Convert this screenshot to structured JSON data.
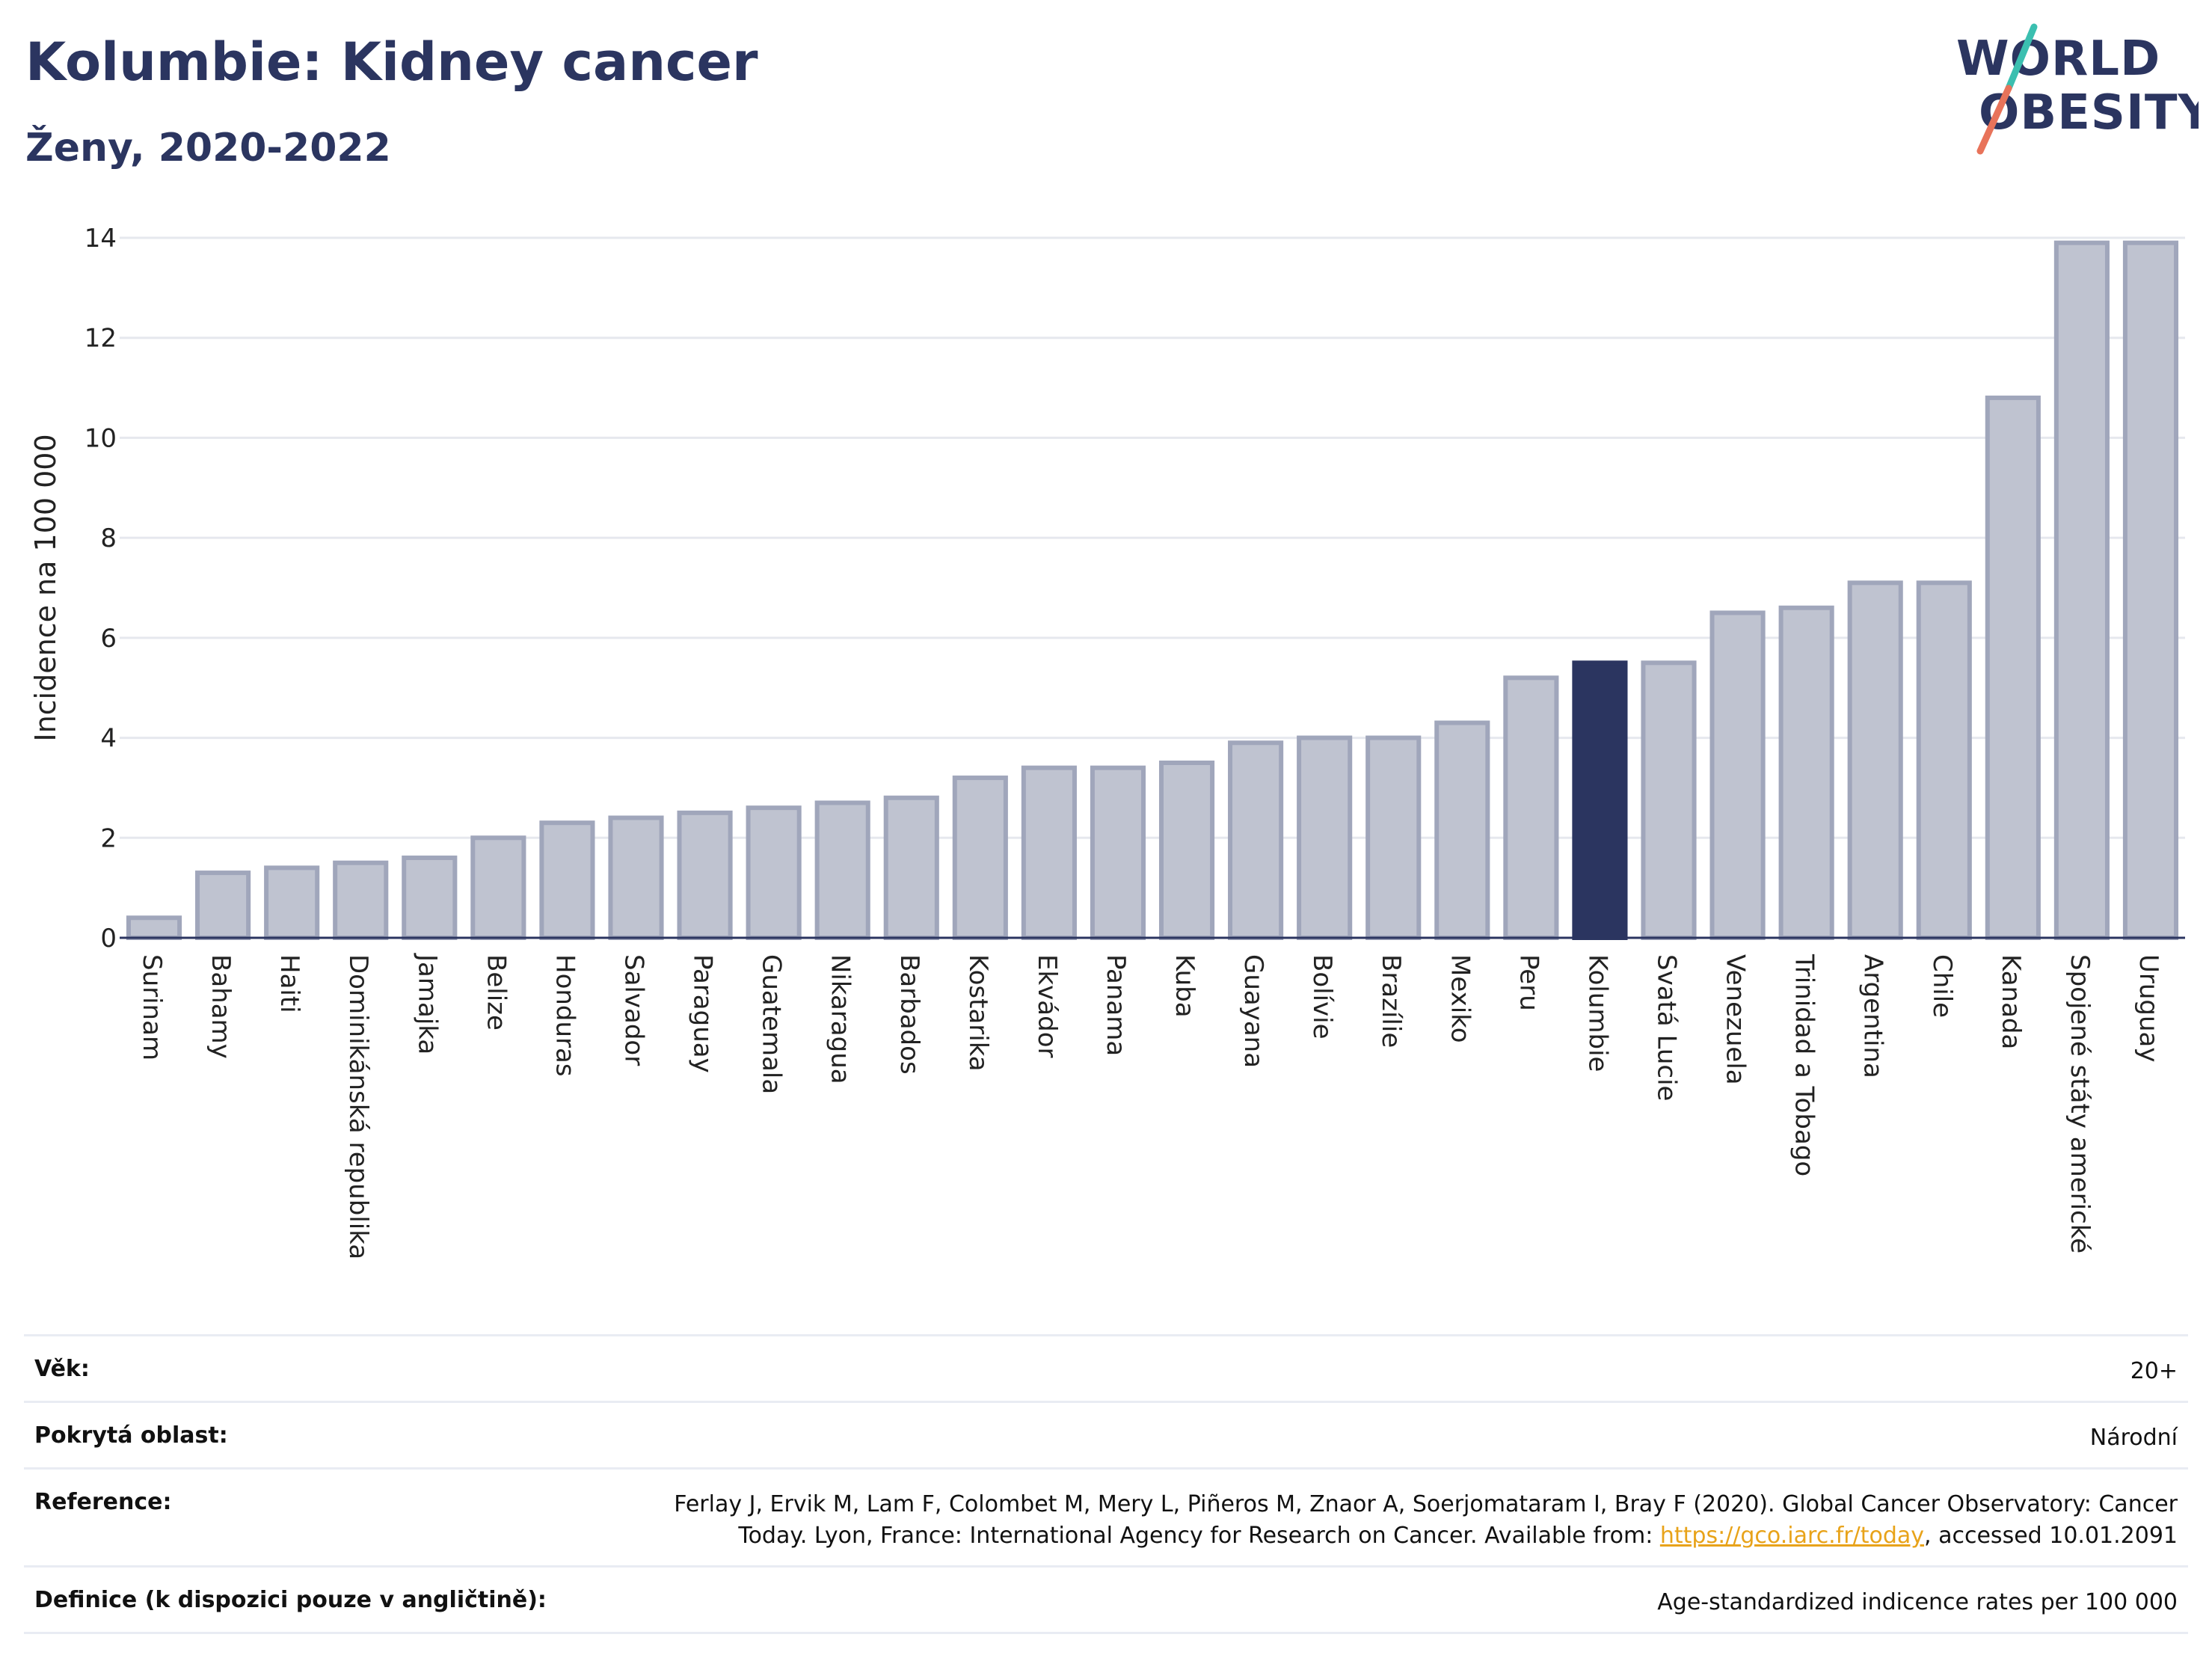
{
  "header": {
    "title": "Kolumbie: Kidney cancer",
    "subtitle": "Ženy, 2020-2022"
  },
  "logo": {
    "line1": "WORLD",
    "line2": "OBESITY",
    "colors": {
      "text": "#2b3560",
      "slash_top": "#3bbfb0",
      "slash_bottom": "#e8735a"
    }
  },
  "colors": {
    "bar_default": "#bfc3d0",
    "bar_default_border": "#a0a6bb",
    "bar_highlight": "#2b3560",
    "grid": "#e6e8ee",
    "axis": "#2b3560"
  },
  "chart_data": {
    "type": "bar",
    "ylabel": "Incidence na 100 000",
    "ylim": [
      0,
      14
    ],
    "yticks": [
      0,
      2,
      4,
      6,
      8,
      10,
      12,
      14
    ],
    "grid": true,
    "highlight": "Kolumbie",
    "categories": [
      "Surinam",
      "Bahamy",
      "Haiti",
      "Dominikánská republika",
      "Jamajka",
      "Belize",
      "Honduras",
      "Salvador",
      "Paraguay",
      "Guatemala",
      "Nikaragua",
      "Barbados",
      "Kostarika",
      "Ekvádor",
      "Panama",
      "Kuba",
      "Guayana",
      "Bolívie",
      "Brazílie",
      "Mexiko",
      "Peru",
      "Kolumbie",
      "Svatá Lucie",
      "Venezuela",
      "Trinidad a Tobago",
      "Argentina",
      "Chile",
      "Kanada",
      "Spojené státy americké",
      "Uruguay"
    ],
    "values": [
      0.4,
      1.3,
      1.4,
      1.5,
      1.6,
      2.0,
      2.3,
      2.4,
      2.5,
      2.6,
      2.7,
      2.8,
      3.2,
      3.4,
      3.4,
      3.5,
      3.9,
      4.0,
      4.0,
      4.3,
      5.2,
      5.5,
      5.5,
      6.5,
      6.6,
      7.1,
      7.1,
      10.8,
      13.9,
      13.9
    ]
  },
  "meta": {
    "rows": [
      {
        "label": "Věk:",
        "value": "20+"
      },
      {
        "label": "Pokrytá oblast:",
        "value": "Národní"
      },
      {
        "label": "Reference:",
        "value_line1": "Ferlay J, Ervik M, Lam F, Colombet M, Mery L, Piñeros M, Znaor A, Soerjomataram I, Bray F (2020). Global Cancer Observatory: Cancer",
        "value_line2_pre": "Today. Lyon, France: International Agency for Research on Cancer. Available from: ",
        "link": "https://gco.iarc.fr/today",
        "value_line2_post": ", accessed 10.01.2091"
      },
      {
        "label": "Definice (k dispozici pouze v angličtině):",
        "value": "Age-standardized indicence rates per 100 000"
      }
    ]
  }
}
